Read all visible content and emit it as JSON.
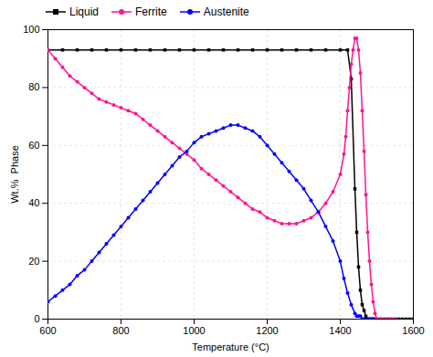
{
  "chart_data": {
    "type": "line",
    "xlabel": "Temperature (°C)",
    "ylabel": "Wt.%  Phase",
    "xlim": [
      600,
      1600
    ],
    "ylim": [
      0,
      100
    ],
    "xticks": [
      600,
      800,
      1000,
      1200,
      1400,
      1600
    ],
    "yticks": [
      0,
      20,
      40,
      60,
      80,
      100
    ],
    "grid": true,
    "legend": "upper left",
    "series": [
      {
        "name": "Liquid",
        "color": "#000000",
        "marker": "square",
        "x": [
          600,
          640,
          680,
          720,
          760,
          800,
          840,
          880,
          920,
          960,
          1000,
          1040,
          1080,
          1120,
          1160,
          1200,
          1240,
          1280,
          1320,
          1360,
          1400,
          1420,
          1430,
          1440,
          1445,
          1450,
          1455,
          1460,
          1465,
          1470,
          1475,
          1480,
          1485,
          1490,
          1495,
          1500,
          1510,
          1520,
          1530,
          1540,
          1550,
          1560,
          1570,
          1580,
          1590,
          1600
        ],
        "values": [
          93,
          93,
          93,
          93,
          93,
          93,
          93,
          93,
          93,
          93,
          93,
          93,
          93,
          93,
          93,
          93,
          93,
          93,
          93,
          93,
          93,
          93,
          83,
          45,
          30,
          18,
          10,
          5,
          3,
          1,
          0,
          0,
          0,
          0,
          0,
          0,
          0,
          0,
          0,
          0,
          0,
          0,
          0,
          0,
          0,
          0
        ]
      },
      {
        "name": "Ferrite",
        "color": "#ff1493",
        "marker": "circle",
        "x": [
          600,
          620,
          640,
          660,
          680,
          700,
          720,
          740,
          760,
          780,
          800,
          820,
          840,
          860,
          880,
          900,
          920,
          940,
          960,
          980,
          1000,
          1020,
          1040,
          1060,
          1080,
          1100,
          1120,
          1140,
          1160,
          1180,
          1200,
          1220,
          1240,
          1260,
          1280,
          1300,
          1320,
          1340,
          1360,
          1380,
          1400,
          1410,
          1415,
          1420,
          1425,
          1430,
          1435,
          1440,
          1445,
          1450,
          1455,
          1460,
          1465,
          1470,
          1475,
          1480,
          1485,
          1490,
          1495,
          1500,
          1510,
          1520,
          1530,
          1540,
          1550
        ],
        "values": [
          93,
          90,
          87,
          84,
          82,
          80,
          78,
          76,
          75,
          74,
          73,
          72,
          71,
          69,
          67,
          65,
          63,
          61,
          59,
          57,
          55,
          52,
          50,
          48,
          46,
          44,
          42,
          40,
          38,
          37,
          35,
          34,
          33,
          33,
          33,
          34,
          35,
          37,
          40,
          44,
          50,
          57,
          63,
          72,
          80,
          88,
          93,
          97,
          97,
          93,
          85,
          72,
          58,
          43,
          30,
          20,
          12,
          6,
          2,
          0,
          0,
          0,
          0,
          0,
          0
        ]
      },
      {
        "name": "Austenite",
        "color": "#0000ff",
        "marker": "circle",
        "x": [
          600,
          620,
          640,
          660,
          680,
          700,
          720,
          740,
          760,
          780,
          800,
          820,
          840,
          860,
          880,
          900,
          920,
          940,
          960,
          980,
          1000,
          1020,
          1040,
          1060,
          1080,
          1100,
          1120,
          1140,
          1160,
          1180,
          1200,
          1220,
          1240,
          1260,
          1280,
          1300,
          1320,
          1340,
          1360,
          1380,
          1400,
          1410,
          1420,
          1430,
          1440,
          1445,
          1450,
          1455,
          1460,
          1465,
          1470,
          1475,
          1480,
          1485,
          1490
        ],
        "values": [
          6,
          8,
          10,
          12,
          15,
          17,
          20,
          23,
          26,
          29,
          32,
          35,
          38,
          41,
          44,
          47,
          50,
          53,
          56,
          58,
          61,
          63,
          64,
          65,
          66,
          67,
          67,
          66,
          65,
          63,
          60,
          57,
          54,
          51,
          48,
          45,
          41,
          37,
          32,
          27,
          20,
          14,
          9,
          5,
          2,
          1,
          1,
          1,
          0,
          0,
          0,
          0,
          0,
          0,
          0
        ]
      }
    ]
  }
}
